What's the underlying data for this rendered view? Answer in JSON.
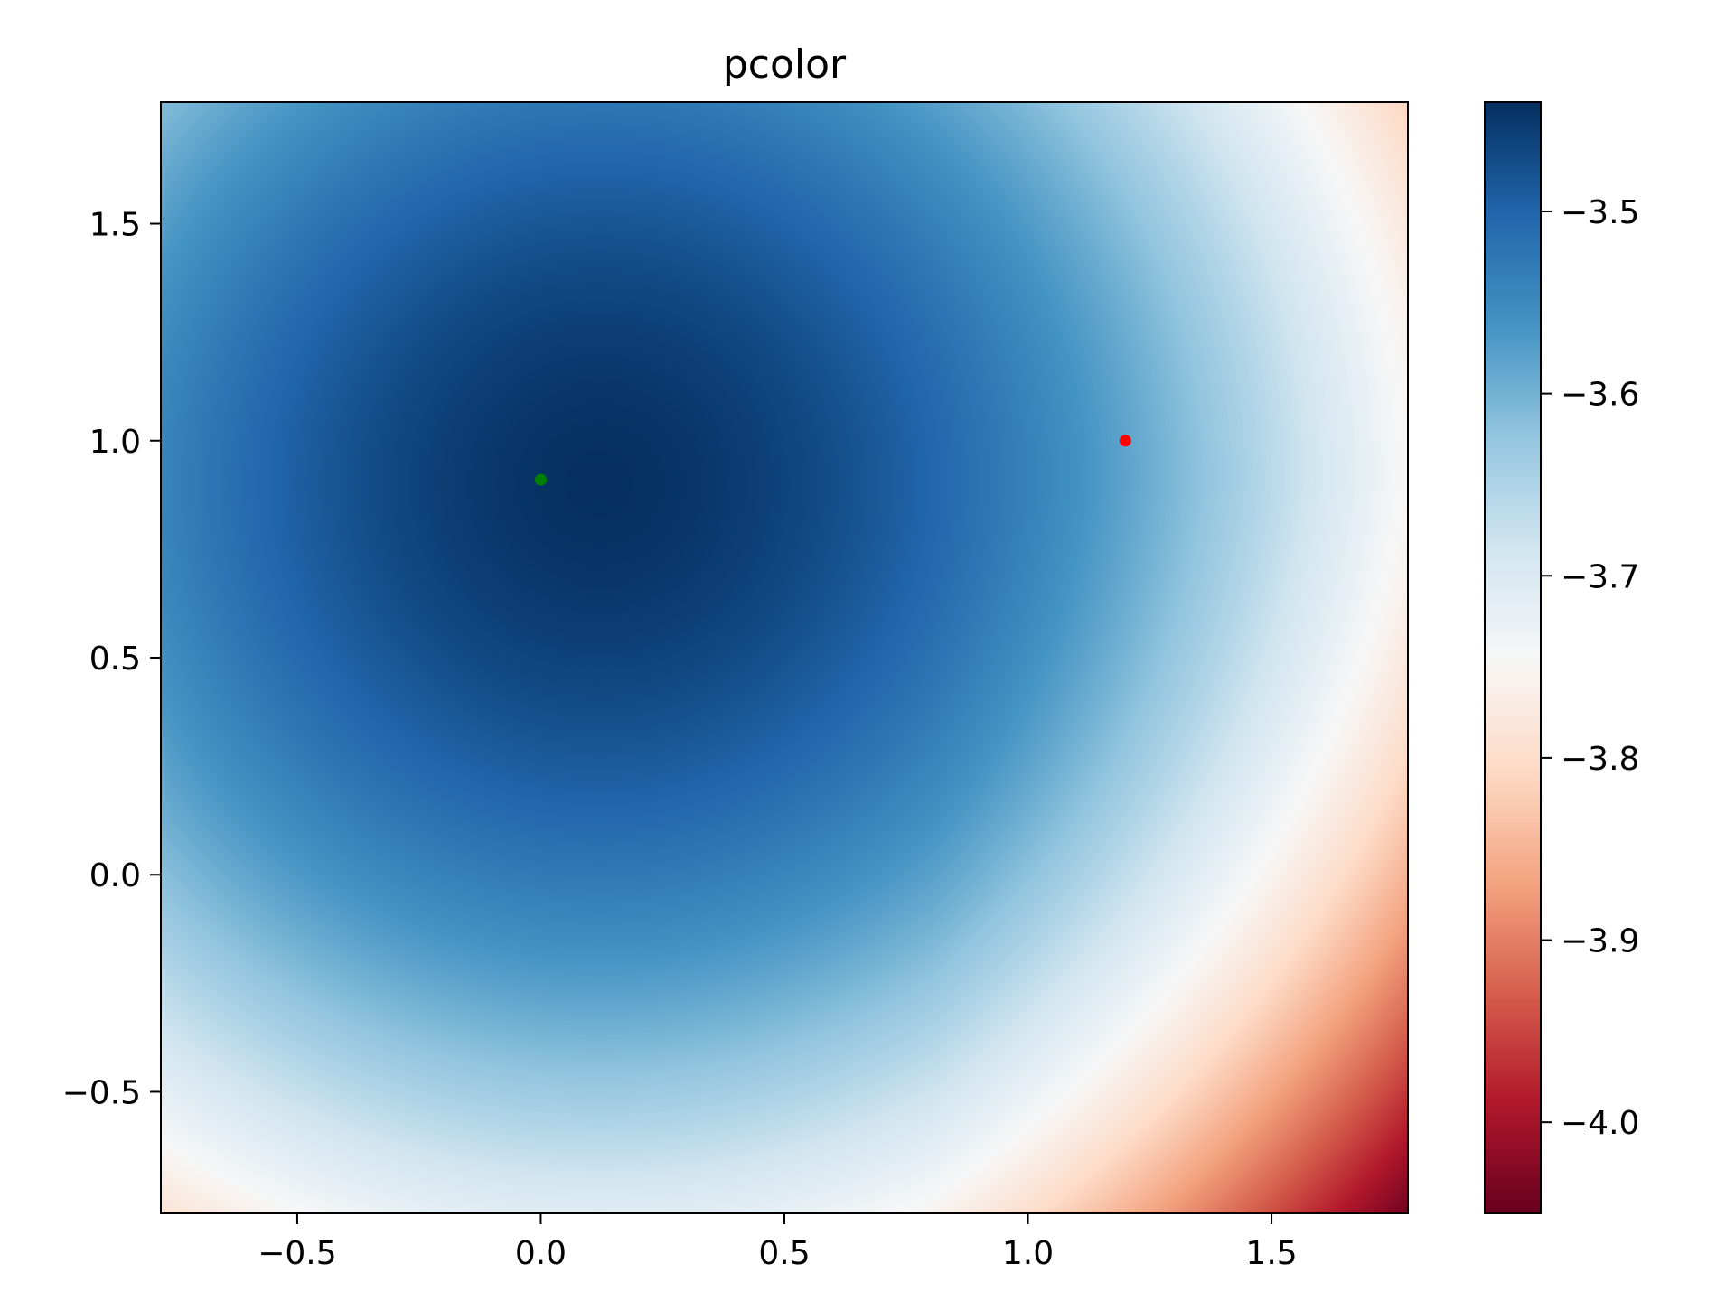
{
  "chart_data": {
    "type": "heatmap",
    "title": "pcolor",
    "xlabel": "",
    "ylabel": "",
    "xlim": [
      -0.78,
      1.78
    ],
    "ylim": [
      -0.78,
      1.78
    ],
    "x_ticks": [
      -0.5,
      0.0,
      0.5,
      1.0,
      1.5
    ],
    "y_ticks": [
      -0.5,
      0.0,
      0.5,
      1.0,
      1.5
    ],
    "x_tick_labels": [
      "−0.5",
      "0.0",
      "0.5",
      "1.0",
      "1.5"
    ],
    "y_tick_labels": [
      "−0.5",
      "0.0",
      "0.5",
      "1.0",
      "1.5"
    ],
    "colormap": "RdBu",
    "colorbar": {
      "vmin": -4.05,
      "vmax": -3.44,
      "ticks": [
        -4.0,
        -3.9,
        -3.8,
        -3.7,
        -3.6,
        -3.5
      ],
      "tick_labels": [
        "−4.0",
        "−3.9",
        "−3.8",
        "−3.7",
        "−3.6",
        "−3.5"
      ]
    },
    "grid": false,
    "surface_samples": [
      {
        "x": 0.12,
        "y": 0.9,
        "value": -3.44
      },
      {
        "x": -0.78,
        "y": 1.78,
        "value": -3.59
      },
      {
        "x": 0.2,
        "y": -0.78,
        "value": -3.72
      },
      {
        "x": 1.5,
        "y": 0.0,
        "value": -3.75
      },
      {
        "x": 1.78,
        "y": 1.78,
        "value": -3.79
      },
      {
        "x": 1.78,
        "y": -0.78,
        "value": -4.05
      }
    ],
    "points": [
      {
        "x": 0.0,
        "y": 0.91,
        "color": "#008000"
      },
      {
        "x": 1.2,
        "y": 1.0,
        "color": "#ff0000"
      }
    ]
  }
}
